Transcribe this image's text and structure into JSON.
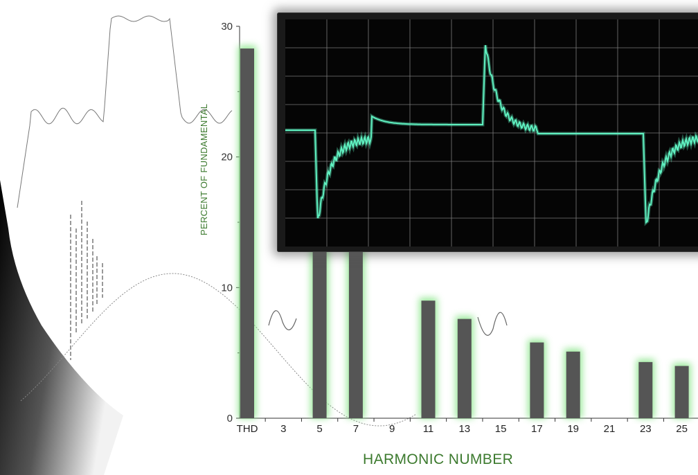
{
  "chart_data": {
    "type": "bar",
    "xlabel": "HARMONIC NUMBER",
    "ylabel": "PERCENT OF FUNDAMENTAL",
    "ylim": [
      0,
      30
    ],
    "yticks": [
      "0",
      "10",
      "20",
      "30"
    ],
    "grid": false,
    "categories": [
      "THD",
      "3",
      "5",
      "7",
      "9",
      "11",
      "13",
      "15",
      "17",
      "19",
      "21",
      "23",
      "25"
    ],
    "values": [
      28.3,
      0,
      15.5,
      16.0,
      0,
      9.0,
      7.6,
      0,
      5.8,
      5.1,
      0,
      4.3,
      4.0
    ],
    "colors": {
      "bar": "#555555",
      "glow": "#8ee68e",
      "axis": "#333333",
      "label": "#3c7a2e",
      "trace": "#5ff0c0"
    }
  },
  "inset": {
    "name": "oscilloscope-current-waveform"
  }
}
